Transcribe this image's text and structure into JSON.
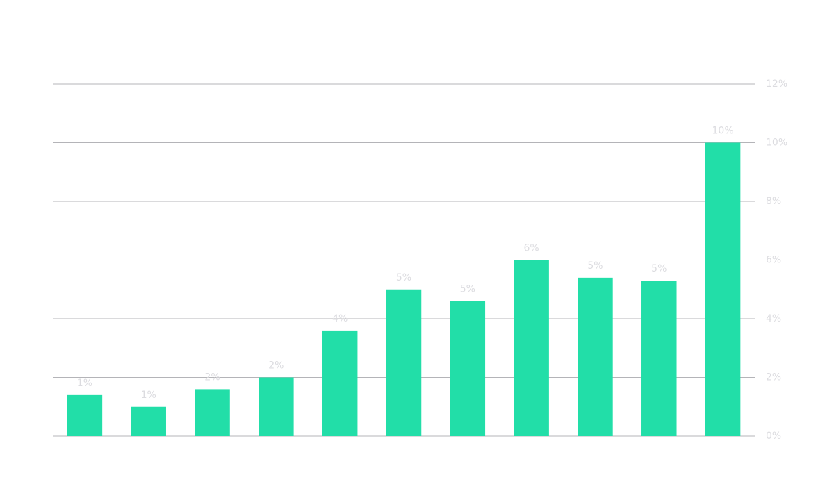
{
  "chart_data": {
    "type": "bar",
    "categories": [
      null,
      null,
      null,
      null,
      null,
      null,
      null,
      null,
      null,
      null,
      null
    ],
    "values": [
      1.4,
      1.0,
      1.6,
      2.0,
      3.6,
      5.0,
      4.6,
      6.0,
      5.4,
      5.3,
      10.0
    ],
    "value_labels": [
      "1%",
      "1%",
      "2%",
      "2%",
      "4%",
      "5%",
      "5%",
      "6%",
      "5%",
      "5%",
      "10%"
    ],
    "color": "#22dea8",
    "ylim": [
      0,
      12
    ],
    "yticks": [
      {
        "value": 0,
        "label": "0%"
      },
      {
        "value": 2,
        "label": "2%"
      },
      {
        "value": 4,
        "label": "4%"
      },
      {
        "value": 6,
        "label": "6%"
      },
      {
        "value": 8,
        "label": "8%"
      },
      {
        "value": 10,
        "label": "10%"
      },
      {
        "value": 12,
        "label": "12%"
      }
    ],
    "grid": true,
    "y_axis_side": "right"
  }
}
